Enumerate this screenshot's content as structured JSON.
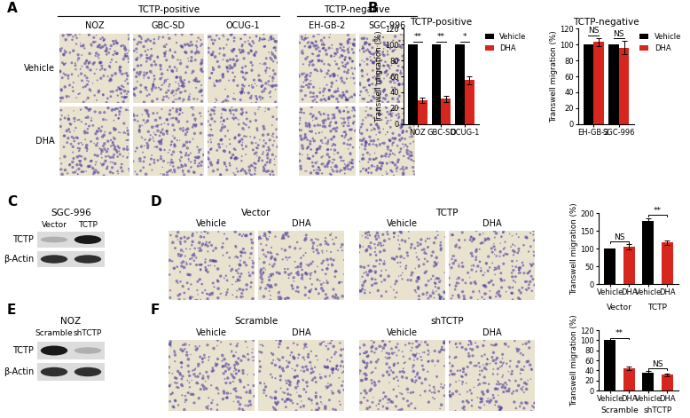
{
  "panels": {
    "A": {
      "label": "A",
      "groups": [
        {
          "title": "TCTP-positive",
          "columns": [
            "NOZ",
            "GBC-SD",
            "OCUG-1"
          ]
        },
        {
          "title": "TCTP-negative",
          "columns": [
            "EH-GB-2",
            "SGC-996"
          ]
        }
      ],
      "rows": [
        "Vehicle",
        "DHA"
      ]
    },
    "B": {
      "label": "B"
    },
    "C": {
      "label": "C",
      "cell_line": "SGC-996",
      "lanes": [
        "Vector",
        "TCTP"
      ],
      "bands": [
        {
          "name": "TCTP",
          "intensity": [
            0.35,
            1.0
          ]
        },
        {
          "name": "β-Actin",
          "intensity": [
            0.9,
            0.9
          ]
        }
      ]
    },
    "D": {
      "label": "D",
      "groups": [
        {
          "title": "Vector",
          "columns": [
            "Vehicle",
            "DHA"
          ]
        },
        {
          "title": "TCTP",
          "columns": [
            "Vehicle",
            "DHA"
          ]
        }
      ]
    },
    "E": {
      "label": "E",
      "cell_line": "NOZ",
      "lanes": [
        "Scramble",
        "shTCTP"
      ],
      "bands": [
        {
          "name": "TCTP",
          "intensity": [
            1.0,
            0.35
          ]
        },
        {
          "name": "β-Actin",
          "intensity": [
            0.9,
            0.9
          ]
        }
      ]
    },
    "F": {
      "label": "F",
      "groups": [
        {
          "title": "Scramble",
          "columns": [
            "Vehicle",
            "DHA"
          ]
        },
        {
          "title": "shTCTP",
          "columns": [
            "Vehicle",
            "DHA"
          ]
        }
      ]
    }
  },
  "chart_data": [
    {
      "type": "bar",
      "title": "TCTP-positive",
      "y_label": "Transwell migration (%)",
      "categories": [
        "NOZ",
        "GBC-SD",
        "OCUG-1"
      ],
      "series": [
        {
          "name": "Vehicle",
          "color": "#000000",
          "values": [
            100,
            100,
            100
          ],
          "errors": [
            0,
            0,
            0
          ]
        },
        {
          "name": "DHA",
          "color": "#d7261e",
          "values": [
            30,
            32,
            55
          ],
          "errors": [
            3,
            4,
            5
          ]
        }
      ],
      "ylim": [
        0,
        120
      ],
      "yticks": [
        0,
        20,
        40,
        60,
        80,
        100,
        120
      ],
      "legend": "upper left",
      "significance": [
        "**",
        "**",
        "*"
      ]
    },
    {
      "type": "bar",
      "title": "TCTP-negative",
      "y_label": "Transwell migration (%)",
      "categories": [
        "EH-GB-2",
        "SGC-996"
      ],
      "series": [
        {
          "name": "Vehicle",
          "color": "#000000",
          "values": [
            100,
            100
          ],
          "errors": [
            0,
            0
          ]
        },
        {
          "name": "DHA",
          "color": "#d7261e",
          "values": [
            103,
            96
          ],
          "errors": [
            5,
            8
          ]
        }
      ],
      "ylim": [
        0,
        120
      ],
      "yticks": [
        0,
        20,
        40,
        60,
        80,
        100,
        120
      ],
      "legend": "upper left",
      "significance": [
        "NS",
        "NS"
      ]
    },
    {
      "type": "bar",
      "y_label": "Transwell migration (%)",
      "categories": [
        "Vehicle",
        "DHA",
        "Vehicle",
        "DHA"
      ],
      "group_labels": [
        "Vector",
        "TCTP"
      ],
      "values": [
        100,
        105,
        178,
        117
      ],
      "errors": [
        0,
        7,
        8,
        6
      ],
      "colors": [
        "#000000",
        "#d7261e",
        "#000000",
        "#d7261e"
      ],
      "ylim": [
        0,
        200
      ],
      "yticks": [
        0,
        50,
        100,
        150,
        200
      ],
      "significance": [
        {
          "between": [
            0,
            1
          ],
          "label": "NS"
        },
        {
          "between": [
            2,
            3
          ],
          "label": "**"
        }
      ]
    },
    {
      "type": "bar",
      "y_label": "Transwell migration (%)",
      "categories": [
        "Vehicle",
        "DHA",
        "Vehicle",
        "DHA"
      ],
      "group_labels": [
        "Scramble",
        "shTCTP"
      ],
      "values": [
        100,
        44,
        35,
        31
      ],
      "errors": [
        0,
        3,
        4,
        3
      ],
      "colors": [
        "#000000",
        "#d7261e",
        "#000000",
        "#d7261e"
      ],
      "ylim": [
        0,
        120
      ],
      "yticks": [
        0,
        20,
        40,
        60,
        80,
        100,
        120
      ],
      "significance": [
        {
          "between": [
            0,
            1
          ],
          "label": "**"
        },
        {
          "between": [
            2,
            3
          ],
          "label": "NS"
        }
      ]
    }
  ]
}
